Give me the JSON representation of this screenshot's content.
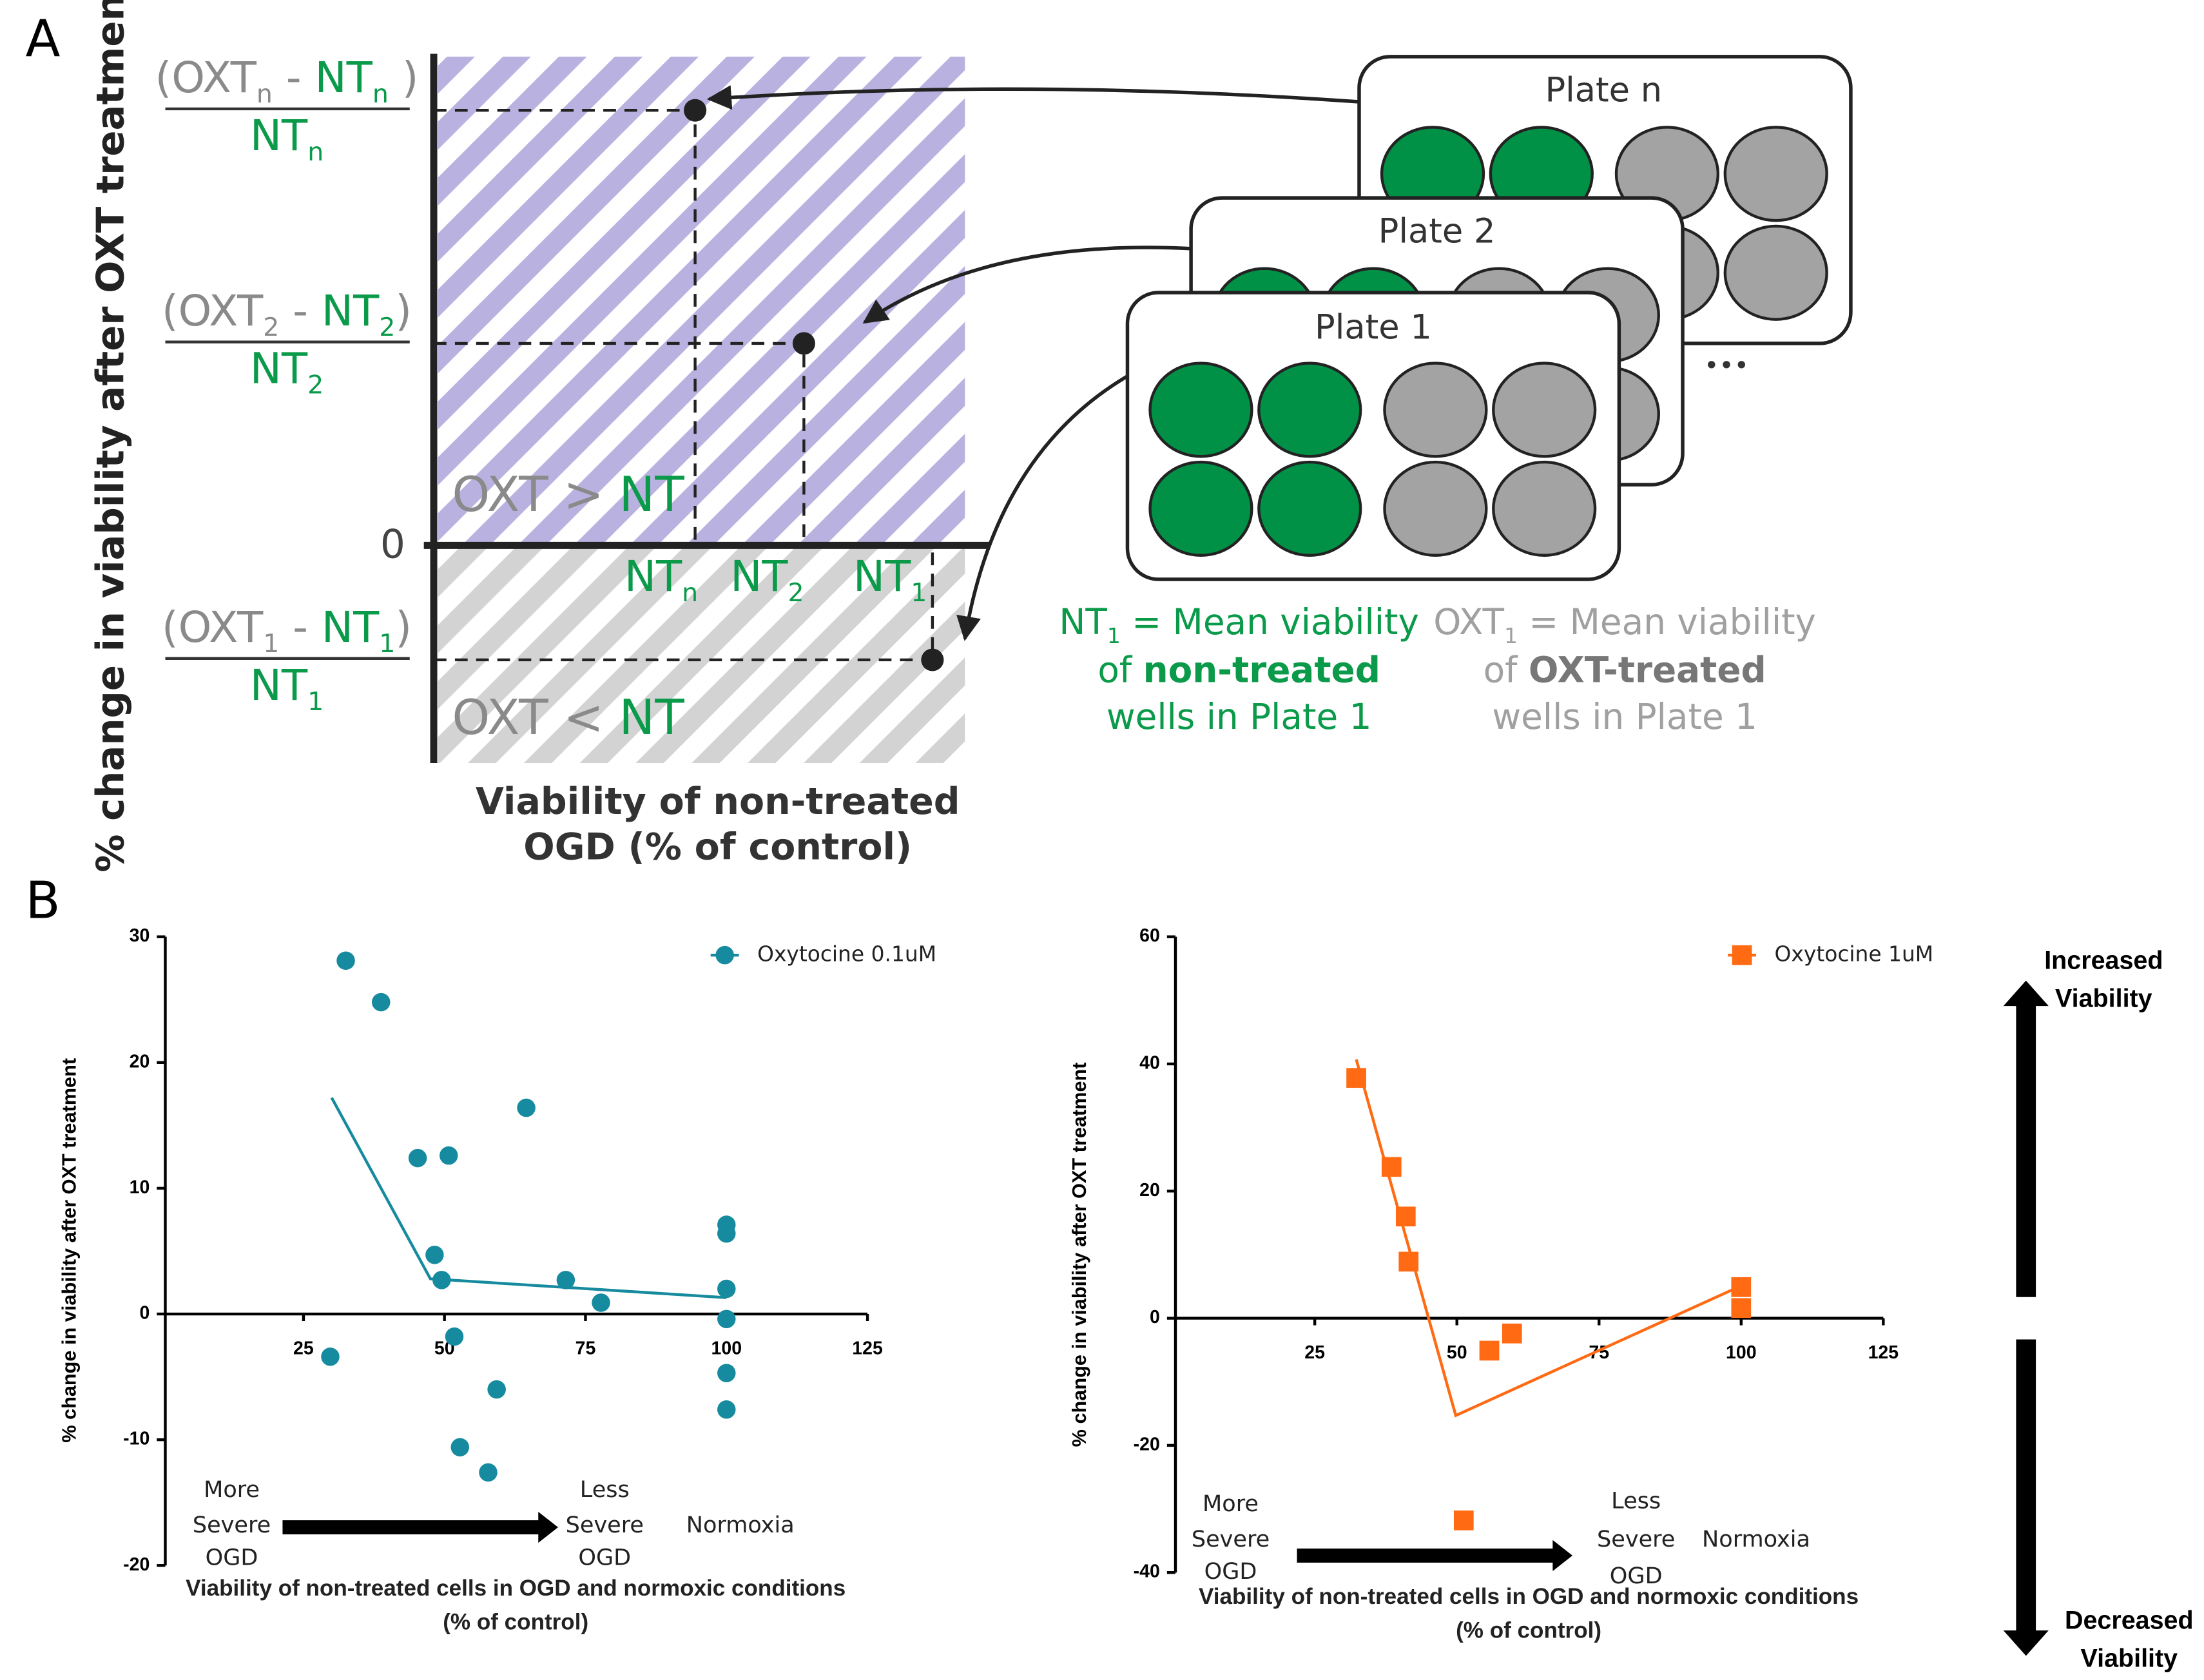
{
  "panel_a": {
    "label": "A",
    "y_label": "% change in viability after OXT treatment",
    "x_label": [
      "Viability of non-treated",
      "OGD (% of control)"
    ],
    "zero": "0",
    "fractions": [
      {
        "numerator": [
          "(OXT",
          "n",
          " - ",
          "NT",
          "n",
          " )"
        ],
        "denominator": [
          "NT",
          "n"
        ]
      },
      {
        "numerator": [
          "(OXT",
          "2",
          " - ",
          "NT",
          "2",
          ")"
        ],
        "denominator": [
          "NT",
          "2"
        ]
      },
      {
        "numerator": [
          "(OXT",
          "1",
          " - ",
          "NT",
          "1",
          ")"
        ],
        "denominator": [
          "NT",
          "1"
        ]
      }
    ],
    "x_ticks": [
      [
        "NT",
        "n"
      ],
      [
        "NT",
        "2"
      ],
      [
        "NT",
        "1"
      ]
    ],
    "regions": [
      [
        "OXT",
        " > ",
        "NT"
      ],
      [
        "OXT",
        " < ",
        "NT"
      ]
    ],
    "plates": [
      "Plate n",
      "Plate 2",
      "Plate 1"
    ],
    "ellipsis": "•••",
    "nt_legend": [
      [
        "NT",
        "1",
        " = Mean viability"
      ],
      [
        "of ",
        "non-treated"
      ],
      [
        "wells in Plate 1"
      ]
    ],
    "oxt_legend": [
      [
        "OXT",
        "1",
        " = Mean viability"
      ],
      [
        "of ",
        "OXT-treated"
      ],
      [
        "wells in Plate 1"
      ]
    ]
  },
  "panel_b_label": "B",
  "side_labels": {
    "increased": [
      "Increased",
      "Viability"
    ],
    "decreased": [
      "Decreased",
      "Viability"
    ]
  },
  "chart_data": [
    {
      "type": "scatter",
      "y_label": "% change in viability after OXT treatment",
      "x_label": [
        "Viability of non-treated cells in OGD and normoxic conditions",
        "(% of control)"
      ],
      "xlim": [
        0,
        125
      ],
      "xticks": [
        25,
        50,
        75,
        100,
        125
      ],
      "ylim": [
        -20,
        30
      ],
      "yticks": [
        -20,
        -10,
        0,
        10,
        20,
        30
      ],
      "legend": "upper right",
      "series": [
        {
          "name": "Oxytocine 0.1uM",
          "color": "#168a9e",
          "marker": "circle",
          "x": [
            32.5,
            38.75,
            45.25,
            50.75,
            64.5,
            48.25,
            49.5,
            71.5,
            77.75,
            29.75,
            51.75,
            59.25,
            52.75,
            57.75,
            100,
            100,
            100,
            100,
            100,
            100
          ],
          "values": [
            28.1,
            24.8,
            12.4,
            12.6,
            16.4,
            4.7,
            2.7,
            2.7,
            0.9,
            -3.4,
            -1.8,
            -6.0,
            -10.6,
            -12.6,
            7.1,
            6.4,
            2.0,
            -0.4,
            -4.7,
            -7.6
          ]
        }
      ],
      "fit_line": {
        "x": [
          30,
          47.5,
          100
        ],
        "values": [
          17.2,
          2.8,
          1.3
        ]
      },
      "annotations": [
        [
          "More",
          "Severe",
          "OGD"
        ],
        [
          "Less",
          "Severe",
          "OGD"
        ],
        [
          "Normoxia"
        ]
      ]
    },
    {
      "type": "scatter",
      "y_label": "% change in viability after OXT treatment",
      "x_label": [
        "Viability of non-treated cells in OGD and normoxic conditions",
        "(% of control)"
      ],
      "xlim": [
        0,
        125
      ],
      "xticks": [
        25,
        50,
        75,
        100,
        125
      ],
      "ylim": [
        -40,
        60
      ],
      "yticks": [
        -40,
        -20,
        0,
        20,
        40,
        60
      ],
      "legend": "upper right",
      "series": [
        {
          "name": "Oxytocine 1uM",
          "color": "#ff6a13",
          "marker": "square",
          "x": [
            32.3,
            38.5,
            41,
            41.5,
            55.7,
            59.7,
            51.2,
            100,
            100
          ],
          "values": [
            37.8,
            23.8,
            16,
            8.9,
            -5.1,
            -2.4,
            -31.8,
            4.9,
            1.6
          ]
        }
      ],
      "fit_line": {
        "x": [
          32.3,
          49.8,
          100
        ],
        "values": [
          40.7,
          -15.3,
          5.1
        ]
      },
      "annotations": [
        [
          "More",
          "Severe",
          "OGD"
        ],
        [
          "Less",
          "Severe",
          "OGD"
        ],
        [
          "Normoxia"
        ]
      ]
    }
  ]
}
